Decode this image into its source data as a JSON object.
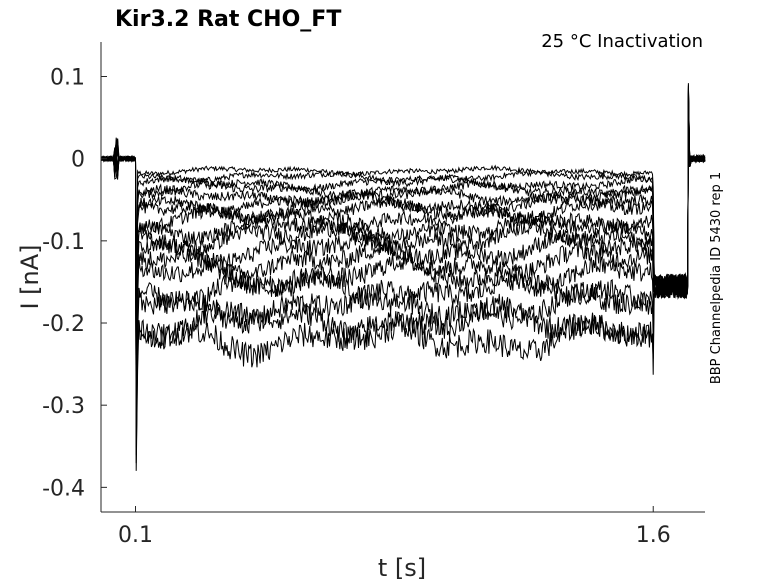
{
  "chart_data": {
    "type": "line",
    "title": "Kir3.2  Rat  CHO_FT",
    "subtitle": "25 °C  Inactivation",
    "side_note": "BBP Channelpedia ID 5430 rep 1",
    "xlabel": "t [s]",
    "ylabel": "I [nA]",
    "xlim": [
      0.0,
      1.75
    ],
    "ylim": [
      -0.43,
      0.142
    ],
    "x_ticks": [
      0.1,
      1.6
    ],
    "x_tick_labels": [
      "0.1",
      "1.6"
    ],
    "y_ticks": [
      0.1,
      0,
      -0.1,
      -0.2,
      -0.3,
      -0.4
    ],
    "y_tick_labels": [
      "0.1",
      "0",
      "-0.1",
      "-0.2",
      "-0.3",
      "-0.4"
    ],
    "grid": false,
    "trace_color": "#000000",
    "protocol": {
      "baseline_level": 0.0,
      "step_start": 0.1,
      "step_end": 1.6,
      "tail_end": 1.7,
      "tail_level": -0.155,
      "capacitive_peak_on": -0.38,
      "capacitive_peak_off": 0.092
    },
    "series": [
      {
        "step_level": -0.015
      },
      {
        "step_level": -0.022
      },
      {
        "step_level": -0.03
      },
      {
        "step_level": -0.038
      },
      {
        "step_level": -0.046
      },
      {
        "step_level": -0.054
      },
      {
        "step_level": -0.063
      },
      {
        "step_level": -0.073
      },
      {
        "step_level": -0.084
      },
      {
        "step_level": -0.096
      },
      {
        "step_level": -0.11
      },
      {
        "step_level": -0.125
      },
      {
        "step_level": -0.142
      },
      {
        "step_level": -0.16
      },
      {
        "step_level": -0.18
      },
      {
        "step_level": -0.2
      },
      {
        "step_level": -0.218
      }
    ]
  }
}
